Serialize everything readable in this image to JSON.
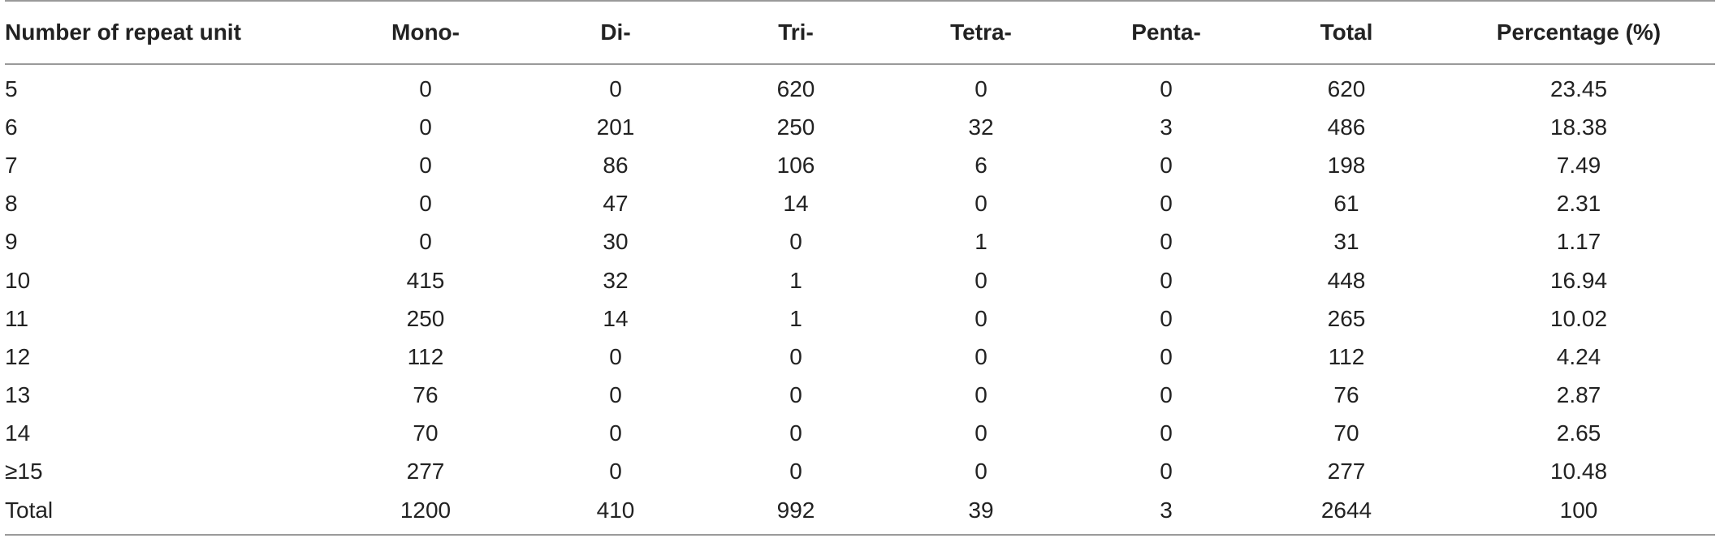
{
  "table": {
    "headers": [
      "Number of repeat unit",
      "Mono-",
      "Di-",
      "Tri-",
      "Tetra-",
      "Penta-",
      "Total",
      "Percentage (%)"
    ],
    "rows": [
      [
        "5",
        "0",
        "0",
        "620",
        "0",
        "0",
        "620",
        "23.45"
      ],
      [
        "6",
        "0",
        "201",
        "250",
        "32",
        "3",
        "486",
        "18.38"
      ],
      [
        "7",
        "0",
        "86",
        "106",
        "6",
        "0",
        "198",
        "7.49"
      ],
      [
        "8",
        "0",
        "47",
        "14",
        "0",
        "0",
        "61",
        "2.31"
      ],
      [
        "9",
        "0",
        "30",
        "0",
        "1",
        "0",
        "31",
        "1.17"
      ],
      [
        "10",
        "415",
        "32",
        "1",
        "0",
        "0",
        "448",
        "16.94"
      ],
      [
        "11",
        "250",
        "14",
        "1",
        "0",
        "0",
        "265",
        "10.02"
      ],
      [
        "12",
        "112",
        "0",
        "0",
        "0",
        "0",
        "112",
        "4.24"
      ],
      [
        "13",
        "76",
        "0",
        "0",
        "0",
        "0",
        "76",
        "2.87"
      ],
      [
        "14",
        "70",
        "0",
        "0",
        "0",
        "0",
        "70",
        "2.65"
      ],
      [
        "≥15",
        "277",
        "0",
        "0",
        "0",
        "0",
        "277",
        "10.48"
      ],
      [
        "Total",
        "1200",
        "410",
        "992",
        "39",
        "3",
        "2644",
        "100"
      ]
    ]
  }
}
